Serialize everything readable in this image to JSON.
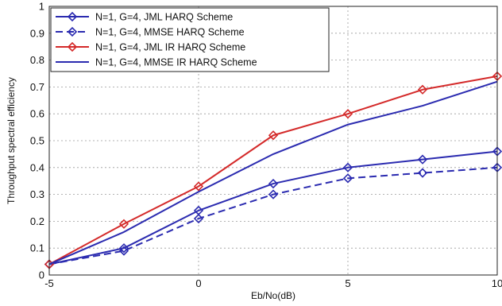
{
  "chart_data": {
    "type": "line",
    "xlabel": "Eb/No(dB)",
    "ylabel": "Throughput spectral efficiency",
    "xlim": [
      -5,
      10
    ],
    "ylim": [
      0,
      1
    ],
    "x_ticks": [
      -5,
      0,
      5,
      10
    ],
    "y_ticks": [
      0,
      0.1,
      0.2,
      0.3,
      0.4,
      0.5,
      0.6,
      0.7,
      0.8,
      0.9,
      1
    ],
    "grid": true,
    "legend_position": "top-left",
    "series": [
      {
        "name": "N=1, G=4, JML HARQ  Scheme",
        "color": "#2b2bb0",
        "line_style": "solid",
        "marker": "diamond",
        "x": [
          -5,
          -2.5,
          0,
          2.5,
          5,
          7.5,
          10
        ],
        "y": [
          0.04,
          0.1,
          0.24,
          0.34,
          0.4,
          0.43,
          0.46
        ]
      },
      {
        "name": "N=1, G=4, MMSE HARQ  Scheme",
        "color": "#2b2bb0",
        "line_style": "dashed",
        "marker": "diamond",
        "x": [
          -5,
          -2.5,
          0,
          2.5,
          5,
          7.5,
          10
        ],
        "y": [
          0.04,
          0.09,
          0.21,
          0.3,
          0.36,
          0.38,
          0.4
        ]
      },
      {
        "name": "N=1, G=4, JML IR HARQ  Scheme",
        "color": "#d42a2a",
        "line_style": "solid",
        "marker": "diamond",
        "x": [
          -5,
          -2.5,
          0,
          2.5,
          5,
          7.5,
          10
        ],
        "y": [
          0.04,
          0.19,
          0.33,
          0.52,
          0.6,
          0.69,
          0.74
        ]
      },
      {
        "name": "N=1, G=4, MMSE IR HARQ  Scheme",
        "color": "#2b2bb0",
        "line_style": "solid",
        "marker": "none",
        "x": [
          -5,
          -2.5,
          0,
          2.5,
          5,
          7.5,
          10
        ],
        "y": [
          0.04,
          0.16,
          0.31,
          0.45,
          0.56,
          0.63,
          0.72
        ]
      }
    ]
  }
}
